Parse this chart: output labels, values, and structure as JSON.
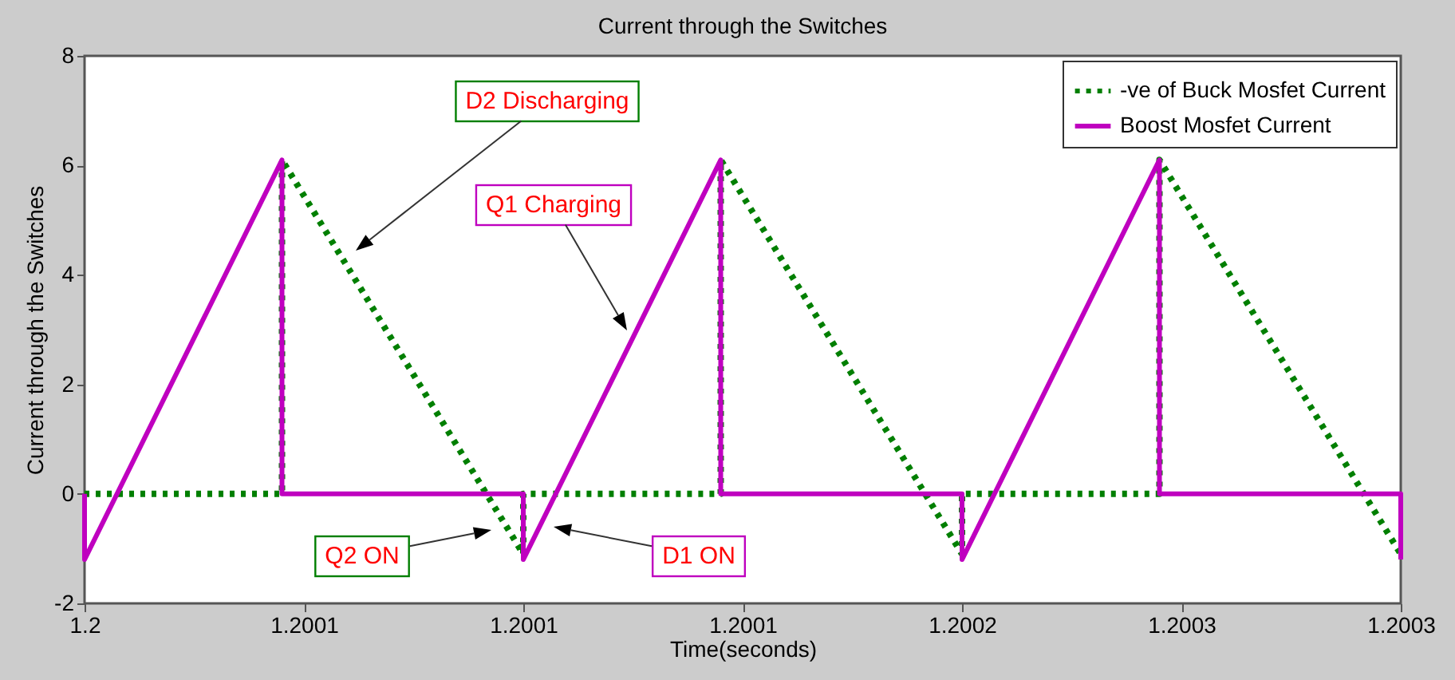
{
  "chart_data": {
    "type": "line",
    "title": "Current through the Switches",
    "xlabel": "Time(seconds)",
    "ylabel": "Current through the Switches",
    "series": [
      {
        "name": "-ve of Buck Mosfet Current",
        "color": "#007f00",
        "line_style": "dotted",
        "x": [
          1.2,
          1.200045,
          1.200045,
          1.2001,
          1.2001,
          1.200145,
          1.200145,
          1.2002,
          1.2002,
          1.200245,
          1.200245,
          1.2003
        ],
        "values": [
          0,
          0,
          6.1,
          -1.1,
          0,
          0,
          6.1,
          -1.1,
          0,
          0,
          6.1,
          -1.1
        ]
      },
      {
        "name": "Boost Mosfet Current",
        "color": "#bf00bf",
        "line_style": "solid",
        "x": [
          1.2,
          1.2,
          1.200045,
          1.200045,
          1.2001,
          1.2001,
          1.200145,
          1.200145,
          1.2002,
          1.2002,
          1.200245,
          1.200245,
          1.2003,
          1.2003
        ],
        "values": [
          0,
          -1.2,
          6.1,
          0,
          0,
          -1.2,
          6.1,
          0,
          0,
          -1.2,
          6.1,
          0,
          0,
          -1.2
        ]
      }
    ],
    "xlim": [
      1.2,
      1.2003
    ],
    "xticks": [
      {
        "value": 1.2,
        "label": "1.2"
      },
      {
        "value": 1.20005,
        "label": "1.2001"
      },
      {
        "value": 1.2001,
        "label": "1.2001"
      },
      {
        "value": 1.20015,
        "label": "1.2001"
      },
      {
        "value": 1.2002,
        "label": "1.2002"
      },
      {
        "value": 1.20025,
        "label": "1.2003"
      },
      {
        "value": 1.2003,
        "label": "1.2003"
      }
    ],
    "ylim": [
      -2,
      8
    ],
    "yticks": [
      -2,
      0,
      2,
      4,
      6,
      8
    ],
    "grid": false,
    "legend": "top right",
    "annotations": [
      "D2 Discharging",
      "Q1  Charging",
      "Q2 ON",
      "D1 ON"
    ]
  }
}
